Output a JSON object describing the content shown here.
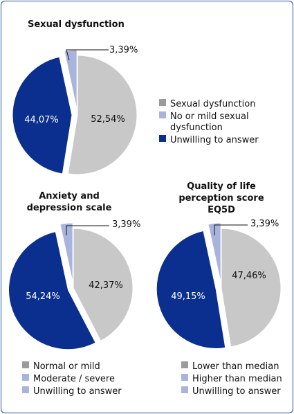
{
  "colors": {
    "gray": "#c8c8c8",
    "lightblue": "#a9b4dd",
    "navy": "#0b2f8e",
    "frame": "#1a4f9a",
    "marker_gray": "#9b9b9b"
  },
  "chart_data": [
    {
      "type": "pie",
      "title": "Sexual dysfunction",
      "slices": [
        {
          "label": "Sexual dysfunction",
          "value": 52.54,
          "value_label": "52,54%",
          "color": "#c8c8c8"
        },
        {
          "label": "Unwilling to answer",
          "value": 44.07,
          "value_label": "44,07%",
          "color": "#0b2f8e"
        },
        {
          "label": "No or mild sexual dysfunction",
          "value": 3.39,
          "value_label": "3,39%",
          "color": "#a9b4dd"
        }
      ],
      "legend": [
        {
          "lines": [
            "Sexual dysfunction"
          ],
          "color": "#9b9b9b"
        },
        {
          "lines": [
            "No or mild sexual",
            "dysfunction"
          ],
          "color": "#a9b4dd"
        },
        {
          "lines": [
            "Unwilling to answer"
          ],
          "color": "#0b2f8e"
        }
      ],
      "legend_position": "right"
    },
    {
      "type": "pie",
      "title_lines": [
        "Anxiety and",
        "depression scale"
      ],
      "slices": [
        {
          "label": "Normal or mild",
          "value": 42.37,
          "value_label": "42,37%",
          "color": "#c8c8c8"
        },
        {
          "label": "Moderate / severe",
          "value": 54.24,
          "value_label": "54,24%",
          "color": "#0b2f8e"
        },
        {
          "label": "Unwilling to answer",
          "value": 3.39,
          "value_label": "3,39%",
          "color": "#a9b4dd"
        }
      ],
      "legend": [
        {
          "lines": [
            "Normal or mild"
          ],
          "color": "#9b9b9b"
        },
        {
          "lines": [
            "Moderate / severe"
          ],
          "color": "#a9b4dd"
        },
        {
          "lines": [
            "Unwilling to answer"
          ],
          "color": "#a9b4dd"
        }
      ],
      "legend_position": "bottom"
    },
    {
      "type": "pie",
      "title_lines": [
        "Quality of life",
        "perception score",
        "EQ5D"
      ],
      "slices": [
        {
          "label": "Lower than median",
          "value": 47.46,
          "value_label": "47,46%",
          "color": "#c8c8c8"
        },
        {
          "label": "Higher than median",
          "value": 49.15,
          "value_label": "49,15%",
          "color": "#0b2f8e"
        },
        {
          "label": "Unwilling to answer",
          "value": 3.39,
          "value_label": "3,39%",
          "color": "#a9b4dd"
        }
      ],
      "legend": [
        {
          "lines": [
            "Lower than median"
          ],
          "color": "#9b9b9b"
        },
        {
          "lines": [
            "Higher than median"
          ],
          "color": "#a9b4dd"
        },
        {
          "lines": [
            "Unwilling to answer"
          ],
          "color": "#a9b4dd"
        }
      ],
      "legend_position": "bottom"
    }
  ]
}
